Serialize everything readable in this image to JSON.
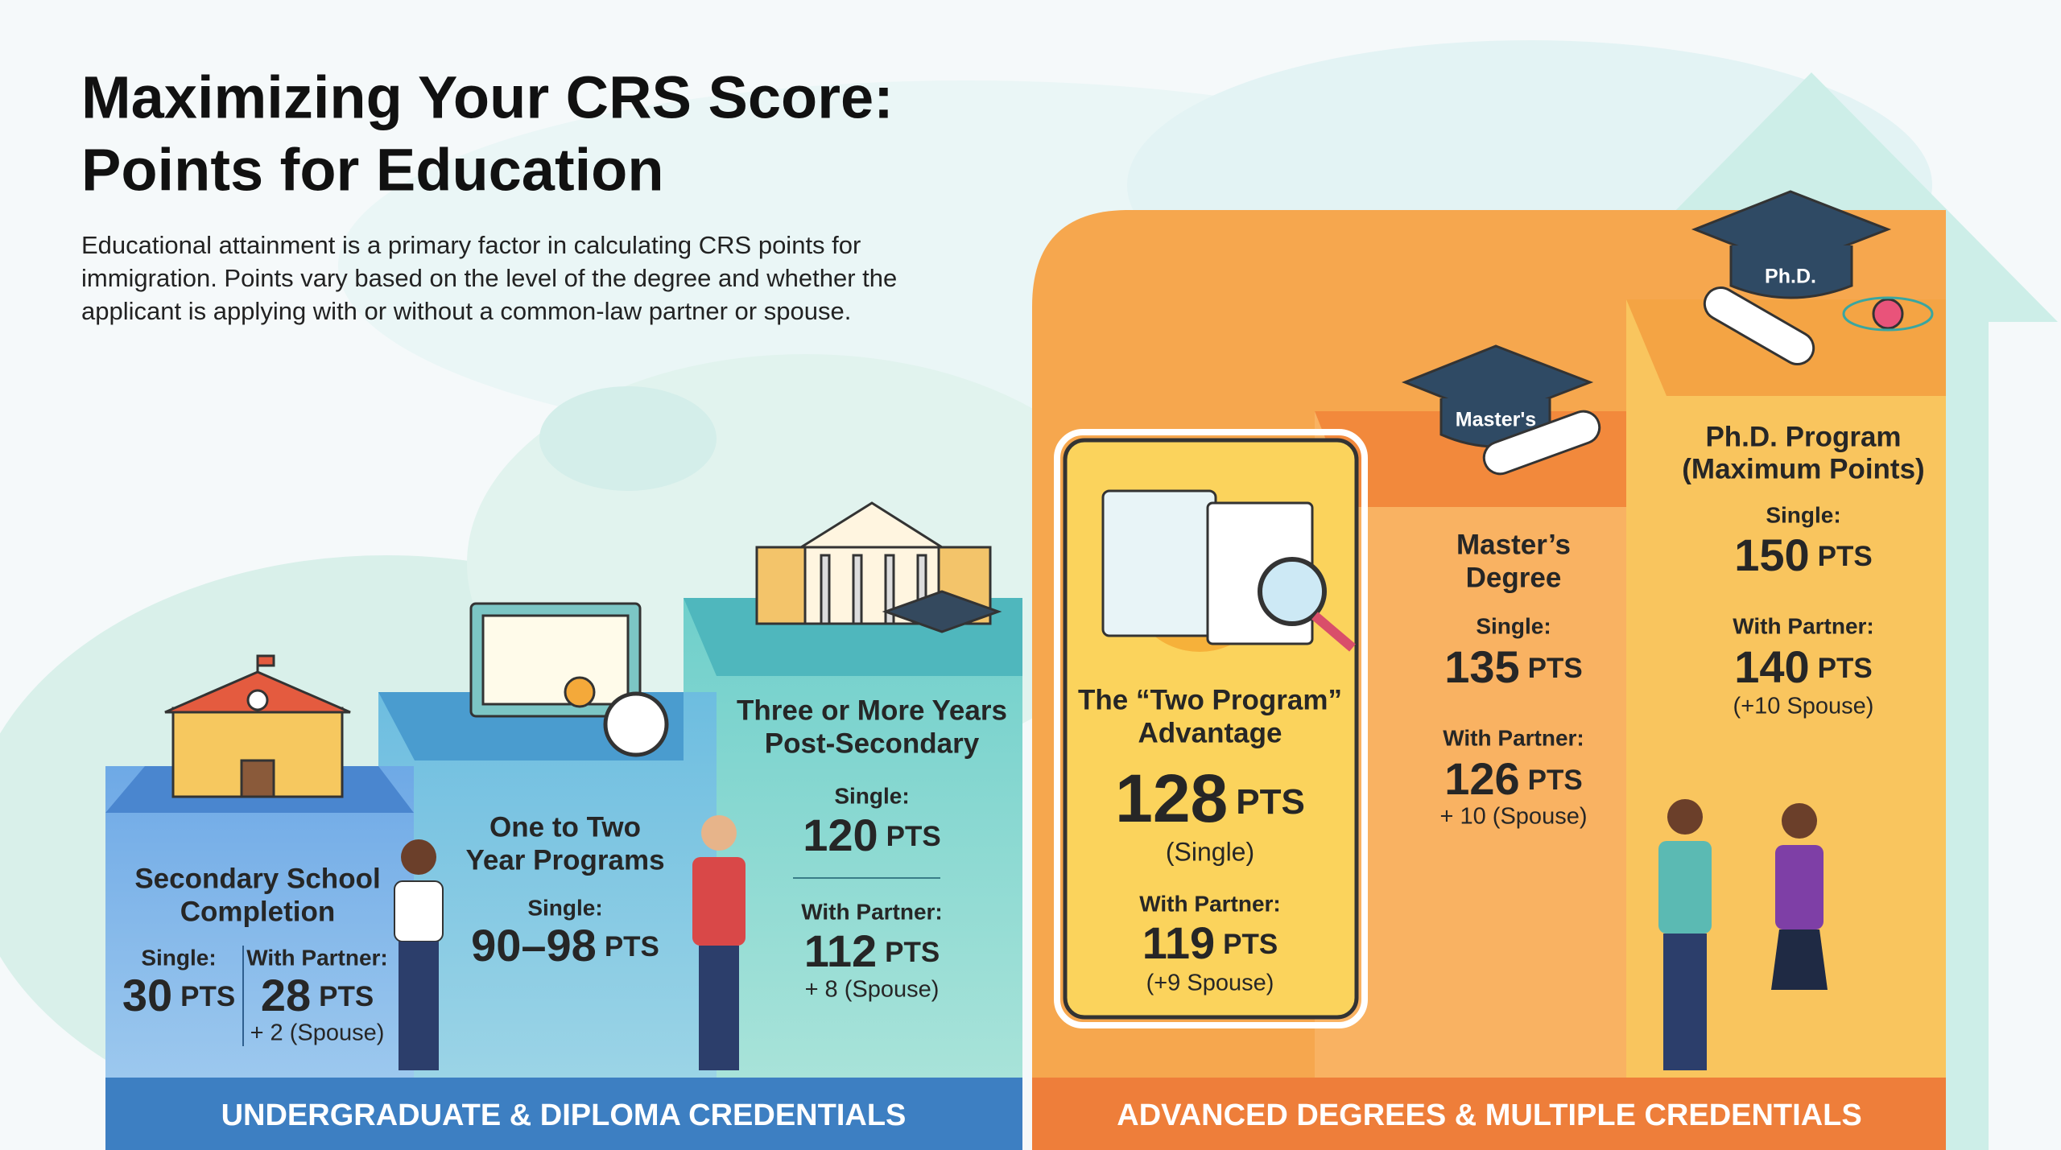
{
  "header": {
    "title": [
      "Maximizing Your CRS Score:",
      "Points for Education"
    ],
    "description": [
      "Educational attainment is a primary factor in calculating CRS points for",
      "immigration. Points vary based on the level of the degree and whether the",
      "applicant is applying with or without a common-law partner or spouse."
    ]
  },
  "points_unit": "PTS",
  "steps": [
    {
      "title": [
        "Secondary School",
        "Completion"
      ],
      "single_label": "Single:",
      "single": 30,
      "partner_label": "With Partner:",
      "partner": 28,
      "spouse_note": "+ 2 (Spouse)"
    },
    {
      "title": [
        "One to Two",
        "Year Programs"
      ],
      "single_label": "Single:",
      "single": "90–98"
    },
    {
      "title": [
        "Three or More Years",
        "Post-Secondary"
      ],
      "single_label": "Single:",
      "single": 120,
      "partner_label": "With Partner:",
      "partner": 112,
      "spouse_note": "+ 8 (Spouse)"
    },
    {
      "title": [
        "The “Two Program”",
        "Advantage"
      ],
      "single": 128,
      "single_note": "(Single)",
      "partner_label": "With Partner:",
      "partner": 119,
      "spouse_note": "(+9 Spouse)"
    },
    {
      "title": [
        "Master’s",
        "Degree"
      ],
      "icon_label": "Master's",
      "single_label": "Single:",
      "single": 135,
      "partner_label": "With Partner:",
      "partner": 126,
      "spouse_note": "+ 10 (Spouse)"
    },
    {
      "title": [
        "Ph.D. Program",
        "(Maximum Points)"
      ],
      "icon_label": "Ph.D.",
      "single_label": "Single:",
      "single": 150,
      "partner_label": "With Partner:",
      "partner": 140,
      "spouse_note": "(+10 Spouse)"
    }
  ],
  "sections": [
    "UNDERGRADUATE & DIPLOMA CREDENTIALS",
    "ADVANCED DEGREES & MULTIPLE CREDENTIALS"
  ]
}
